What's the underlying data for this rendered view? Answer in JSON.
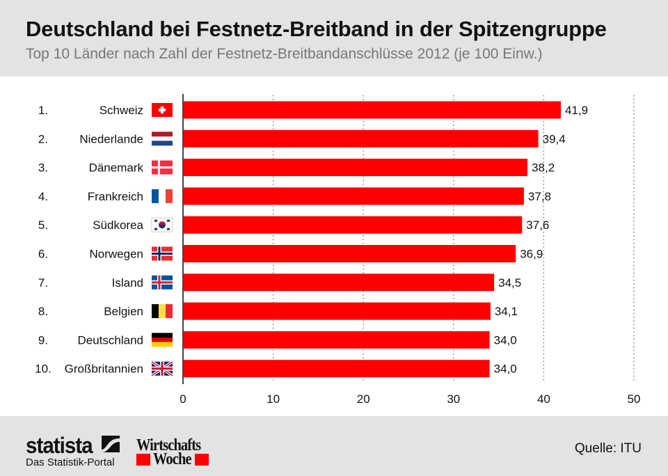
{
  "header": {
    "title": "Deutschland bei Festnetz-Breitband in der Spitzengruppe",
    "subtitle": "Top 10 Länder nach Zahl der Festnetz-Breitbandanschlüsse 2012 (je 100 Einw.)"
  },
  "chart_data": {
    "type": "bar",
    "orientation": "horizontal",
    "title": "Deutschland bei Festnetz-Breitband in der Spitzengruppe",
    "subtitle": "Top 10 Länder nach Zahl der Festnetz-Breitbandanschlüsse 2012 (je 100 Einw.)",
    "ranks": [
      "1.",
      "2.",
      "3.",
      "4.",
      "5.",
      "6.",
      "7.",
      "8.",
      "9.",
      "10."
    ],
    "categories": [
      "Schweiz",
      "Niederlande",
      "Dänemark",
      "Frankreich",
      "Südkorea",
      "Norwegen",
      "Island",
      "Belgien",
      "Deutschland",
      "Großbritannien"
    ],
    "flags": [
      "flag-ch",
      "flag-nl",
      "flag-dk",
      "flag-fr",
      "flag-kr",
      "flag-no",
      "flag-is",
      "flag-be",
      "flag-de",
      "flag-gb"
    ],
    "values": [
      41.9,
      39.4,
      38.2,
      37.8,
      37.6,
      36.9,
      34.5,
      34.1,
      34.0,
      34.0
    ],
    "value_labels": [
      "41,9",
      "39,4",
      "38,2",
      "37,8",
      "37,6",
      "36,9",
      "34,5",
      "34,1",
      "34,0",
      "34,0"
    ],
    "xlim": [
      0,
      50
    ],
    "xticks": [
      0,
      10,
      20,
      30,
      40,
      50
    ],
    "grid": true,
    "bar_color": "#ff0000"
  },
  "footer": {
    "brand": "statista",
    "brand_sub": "Das Statistik-Portal",
    "partner_line1": "Wirtschafts",
    "partner_line2": "Woche",
    "source": "Quelle: ITU"
  }
}
